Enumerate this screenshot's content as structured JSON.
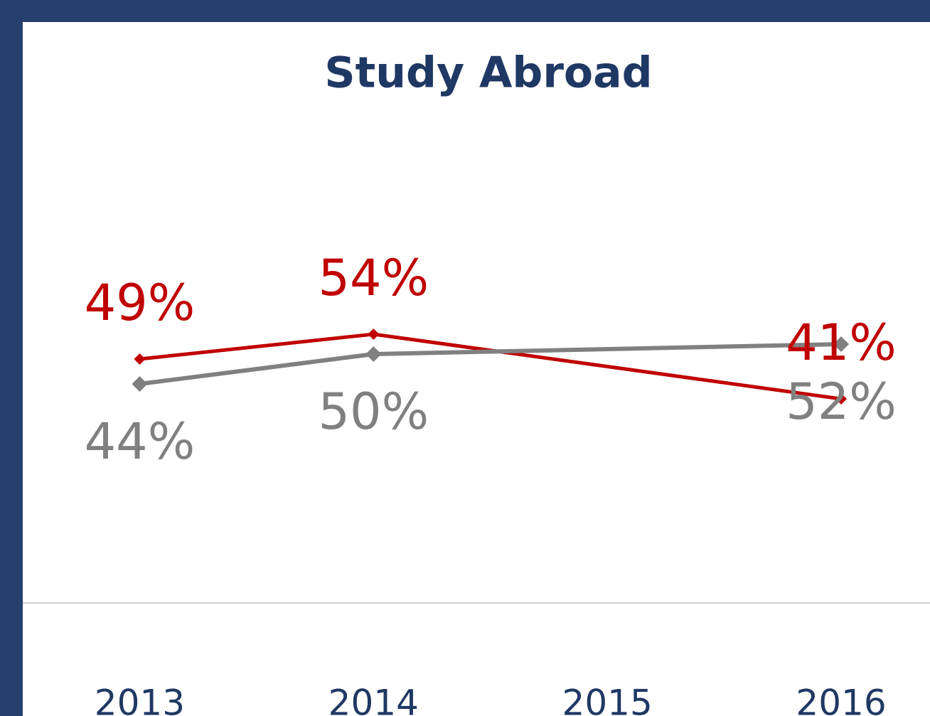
{
  "chart_data": {
    "type": "line",
    "title": "Study Abroad",
    "x": [
      2013,
      2014,
      2016
    ],
    "xlim": [
      2012.5,
      2016.38
    ],
    "xticks": [
      2013,
      2014,
      2015,
      2016
    ],
    "ylim": [
      0,
      100
    ],
    "series": [
      {
        "name": null,
        "color": "#c00000",
        "values": [
          49,
          54,
          41
        ],
        "value_labels": [
          "49%",
          "54%",
          "41%"
        ]
      },
      {
        "name": null,
        "color": "#808080",
        "values": [
          44,
          50,
          52
        ],
        "value_labels": [
          "44%",
          "50%",
          "52%"
        ]
      }
    ]
  }
}
